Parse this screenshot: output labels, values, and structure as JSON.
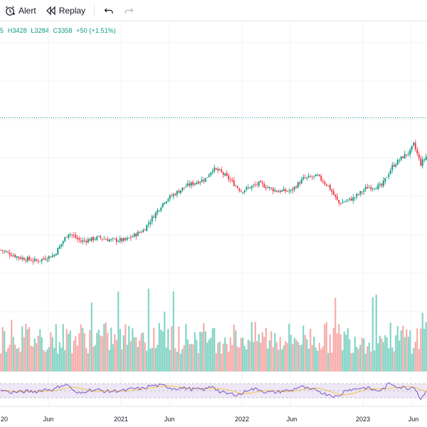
{
  "toolbar": {
    "alert_label": "Alert",
    "replay_label": "Replay",
    "icons": [
      "alarm-clock-icon",
      "replay-icon",
      "undo-icon",
      "redo-icon"
    ]
  },
  "ohlc": {
    "open_fragment": "5",
    "high": "H3428",
    "low": "L3284",
    "close": "C3358",
    "change": "+50 (+1.51%)"
  },
  "colors": {
    "up": "#089981",
    "down": "#f23645",
    "volume_up": "#7fd3c4",
    "volume_down": "#f7a9a7",
    "rsi_line": "#7e57c2",
    "rsi_ma": "#f5c542",
    "rsi_band": "#ede7f6",
    "price_line": "#089981"
  },
  "x_axis": {
    "labels": [
      "20",
      "Jun",
      "2021",
      "Jun",
      "2022",
      "Jun",
      "2023",
      "Jun"
    ]
  },
  "chart_data": {
    "type": "candlestick",
    "price_anchors": [
      {
        "w": 0,
        "p": 2820
      },
      {
        "w": 10,
        "p": 2790
      },
      {
        "w": 20,
        "p": 2775
      },
      {
        "w": 30,
        "p": 2800
      },
      {
        "w": 38,
        "p": 2890
      },
      {
        "w": 45,
        "p": 2855
      },
      {
        "w": 55,
        "p": 2870
      },
      {
        "w": 62,
        "p": 2860
      },
      {
        "w": 70,
        "p": 2860
      },
      {
        "w": 80,
        "p": 2900
      },
      {
        "w": 92,
        "p": 3020
      },
      {
        "w": 104,
        "p": 3080
      },
      {
        "w": 115,
        "p": 3110
      },
      {
        "w": 119,
        "p": 3150
      },
      {
        "w": 123,
        "p": 3140
      },
      {
        "w": 128,
        "p": 3110
      },
      {
        "w": 135,
        "p": 3060
      },
      {
        "w": 145,
        "p": 3090
      },
      {
        "w": 155,
        "p": 3060
      },
      {
        "w": 163,
        "p": 3060
      },
      {
        "w": 170,
        "p": 3110
      },
      {
        "w": 178,
        "p": 3120
      },
      {
        "w": 184,
        "p": 3080
      },
      {
        "w": 190,
        "p": 3010
      },
      {
        "w": 198,
        "p": 3030
      },
      {
        "w": 206,
        "p": 3075
      },
      {
        "w": 214,
        "p": 3080
      },
      {
        "w": 220,
        "p": 3160
      },
      {
        "w": 226,
        "p": 3200
      },
      {
        "w": 230,
        "p": 3220
      },
      {
        "w": 232,
        "p": 3250
      },
      {
        "w": 236,
        "p": 3170
      },
      {
        "w": 239,
        "p": 3200
      }
    ],
    "last_price_line": 3358,
    "volume_trend": "mixed",
    "rsi": {
      "upper": 70,
      "lower": 30,
      "mid": 50
    }
  }
}
